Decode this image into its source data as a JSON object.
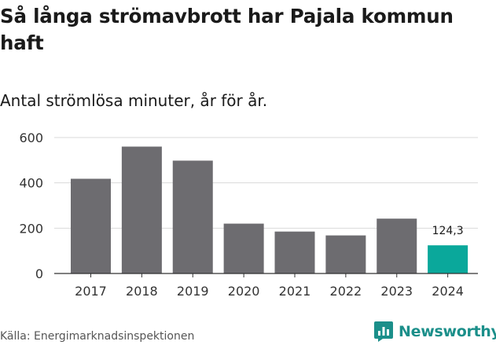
{
  "title": "Så långa strömavbrott har Pajala kommun haft",
  "subtitle": "Antal strömlösa minuter, år för år.",
  "source": "Källa: Energimarknadsinspektionen",
  "brand": "Newsworthy",
  "colors": {
    "bar": "#6d6c70",
    "highlight": "#0aa89b",
    "grid": "#d9d9d9",
    "axis": "#333333",
    "brand": "#1b8f8a"
  },
  "chart_data": {
    "type": "bar",
    "categories": [
      "2017",
      "2018",
      "2019",
      "2020",
      "2021",
      "2022",
      "2023",
      "2024"
    ],
    "values": [
      418,
      560,
      498,
      220,
      185,
      168,
      242,
      124.3
    ],
    "highlight_index": 7,
    "data_labels": {
      "7": "124,3"
    },
    "title": "Så långa strömavbrott har Pajala kommun haft",
    "xlabel": "",
    "ylabel": "",
    "ylim": [
      0,
      600
    ],
    "yticks": [
      0,
      200,
      400,
      600
    ],
    "grid": true
  }
}
